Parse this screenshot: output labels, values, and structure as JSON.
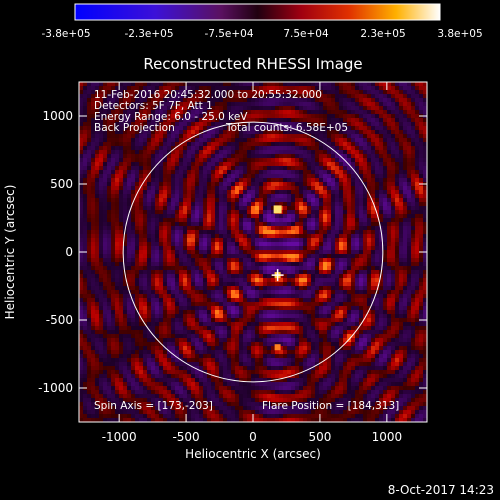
{
  "colorbar": {
    "ticks": [
      "-3.8e+05",
      "-2.3e+05",
      "-7.5e+04",
      "7.5e+04",
      "2.3e+05",
      "3.8e+05"
    ],
    "range": [
      -380000,
      380000
    ]
  },
  "info": {
    "line1": "11-Feb-2016 20:45:32.000 to 20:55:32.000",
    "line2": "Detectors: 5F 7F, Att 1",
    "line3": "Energy Range: 6.0 - 25.0 keV",
    "line4": "Back Projection",
    "line4b": "Total counts: 6.58E+05",
    "spin_axis": "Spin Axis = [173,-203]",
    "flare_position": "Flare Position = [184,313]"
  },
  "footer": {
    "date": "8-Oct-2017 14:23"
  },
  "colors": {
    "solar_limb": "#ffffff",
    "marker": "#ffffff"
  },
  "chart_data": {
    "type": "heatmap",
    "title": "Reconstructed RHESSI Image",
    "xlabel": "Heliocentric X (arcsec)",
    "ylabel": "Heliocentric Y (arcsec)",
    "xlim": [
      -1300,
      1300
    ],
    "ylim": [
      -1250,
      1250
    ],
    "xticks": [
      -1000,
      -500,
      0,
      500,
      1000
    ],
    "yticks": [
      -1000,
      -500,
      0,
      500,
      1000
    ],
    "xtick_labels": [
      "-1000",
      "-500",
      "0",
      "500",
      "1000"
    ],
    "ytick_labels": [
      "-1000",
      "-500",
      "0",
      "500",
      "1000"
    ],
    "solar_radius": 970,
    "flare_position": [
      184,
      313
    ],
    "spin_axis": [
      173,
      -203
    ],
    "sources": [
      {
        "x": 184,
        "y": 313
      },
      {
        "x": 184,
        "y": -170
      },
      {
        "x": 184,
        "y": -700
      }
    ]
  }
}
